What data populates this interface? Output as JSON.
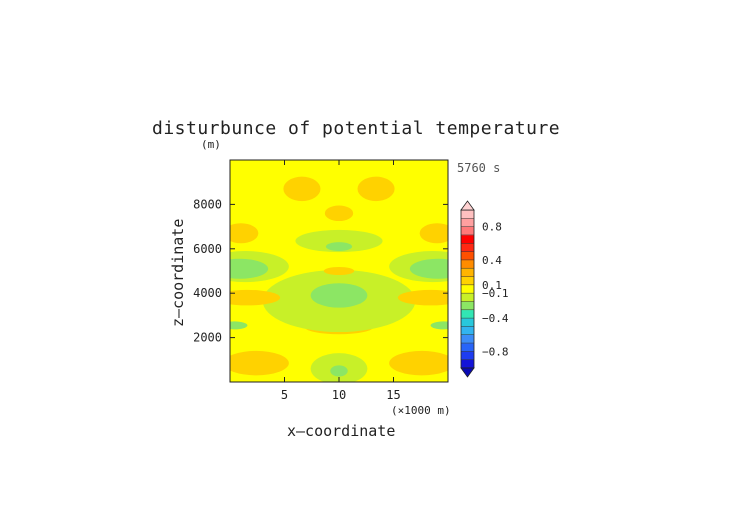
{
  "chart_data": {
    "type": "heatmap",
    "title": "disturbunce of potential temperature",
    "time_label": "5760 s",
    "y_unit": "(m)",
    "xlabel": "x—coordinate",
    "ylabel": "z—coordinate",
    "x_unit": "(×1000 m)",
    "xlim": [
      0,
      20
    ],
    "ylim": [
      0,
      10000
    ],
    "x_ticks": [
      5,
      10,
      15
    ],
    "x_tick_labels": [
      "5",
      "10",
      "15"
    ],
    "y_ticks": [
      2000,
      4000,
      6000,
      8000
    ],
    "y_tick_labels": [
      "2000",
      "4000",
      "6000",
      "8000"
    ],
    "base_level": "-0.1 to 0.1",
    "colorbar": {
      "levels": [
        -1.0,
        -0.9,
        -0.8,
        -0.7,
        -0.6,
        -0.5,
        -0.4,
        -0.3,
        -0.2,
        -0.1,
        0.1,
        0.2,
        0.3,
        0.4,
        0.5,
        0.6,
        0.7,
        0.8,
        0.9,
        1.0
      ],
      "colors": [
        "#1414d8",
        "#1e3cf0",
        "#2864f8",
        "#3c8cf8",
        "#32b4f0",
        "#28c8dc",
        "#32e6b4",
        "#8ce664",
        "#c8f028",
        "#ffff00",
        "#ffd200",
        "#ffb400",
        "#ff8c00",
        "#ff5000",
        "#ff2814",
        "#ff0000",
        "#ff7878",
        "#ffa0a0",
        "#ffc0c0"
      ],
      "tick_values": [
        0.8,
        0.4,
        0.1,
        -0.1,
        -0.4,
        -0.8
      ],
      "tick_labels": [
        "0.8",
        "0.4",
        "0.1",
        "−0.1",
        "−0.4",
        "−0.8"
      ]
    },
    "regions": [
      {
        "level": "0.1 to 0.2",
        "x": 2.4,
        "z": 850,
        "rx": 3.0,
        "rz": 550
      },
      {
        "level": "0.1 to 0.2",
        "x": 17.6,
        "z": 850,
        "rx": 3.0,
        "rz": 550
      },
      {
        "level": "-0.2 to -0.1",
        "x": 10.0,
        "z": 600,
        "rx": 2.6,
        "rz": 700
      },
      {
        "level": "-0.3 to -0.2",
        "x": 10.0,
        "z": 500,
        "rx": 0.8,
        "rz": 250
      },
      {
        "level": "0.1 to 0.2",
        "x": 10.0,
        "z": 2500,
        "rx": 3.2,
        "rz": 350
      },
      {
        "level": "-0.2 to -0.1",
        "x": 10.0,
        "z": 3650,
        "rx": 7.0,
        "rz": 1400
      },
      {
        "level": "-0.3 to -0.2",
        "x": 10.0,
        "z": 3900,
        "rx": 2.6,
        "rz": 550
      },
      {
        "level": "0.1 to 0.2",
        "x": 1.6,
        "z": 3800,
        "rx": 3.0,
        "rz": 350
      },
      {
        "level": "0.1 to 0.2",
        "x": 18.4,
        "z": 3800,
        "rx": 3.0,
        "rz": 350
      },
      {
        "level": "-0.2 to -0.1",
        "x": 1.4,
        "z": 5200,
        "rx": 4.0,
        "rz": 700
      },
      {
        "level": "-0.2 to -0.1",
        "x": 18.6,
        "z": 5200,
        "rx": 4.0,
        "rz": 700
      },
      {
        "level": "-0.3 to -0.2",
        "x": 0.9,
        "z": 5100,
        "rx": 2.6,
        "rz": 450
      },
      {
        "level": "-0.3 to -0.2",
        "x": 19.1,
        "z": 5100,
        "rx": 2.6,
        "rz": 450
      },
      {
        "level": "-0.3 to -0.2",
        "x": 0.4,
        "z": 2550,
        "rx": 1.2,
        "rz": 180
      },
      {
        "level": "-0.3 to -0.2",
        "x": 19.6,
        "z": 2550,
        "rx": 1.2,
        "rz": 180
      },
      {
        "level": "0.1 to 0.2",
        "x": 10.0,
        "z": 5000,
        "rx": 1.4,
        "rz": 180
      },
      {
        "level": "-0.2 to -0.1",
        "x": 10.0,
        "z": 6350,
        "rx": 4.0,
        "rz": 500
      },
      {
        "level": "-0.3 to -0.2",
        "x": 10.0,
        "z": 6100,
        "rx": 1.2,
        "rz": 200
      },
      {
        "level": "0.1 to 0.2",
        "x": 1.0,
        "z": 6700,
        "rx": 1.6,
        "rz": 450
      },
      {
        "level": "0.1 to 0.2",
        "x": 19.0,
        "z": 6700,
        "rx": 1.6,
        "rz": 450
      },
      {
        "level": "0.1 to 0.2",
        "x": 10.0,
        "z": 7600,
        "rx": 1.3,
        "rz": 350
      },
      {
        "level": "0.1 to 0.2",
        "x": 6.6,
        "z": 8700,
        "rx": 1.7,
        "rz": 550
      },
      {
        "level": "0.1 to 0.2",
        "x": 13.4,
        "z": 8700,
        "rx": 1.7,
        "rz": 550
      }
    ]
  }
}
